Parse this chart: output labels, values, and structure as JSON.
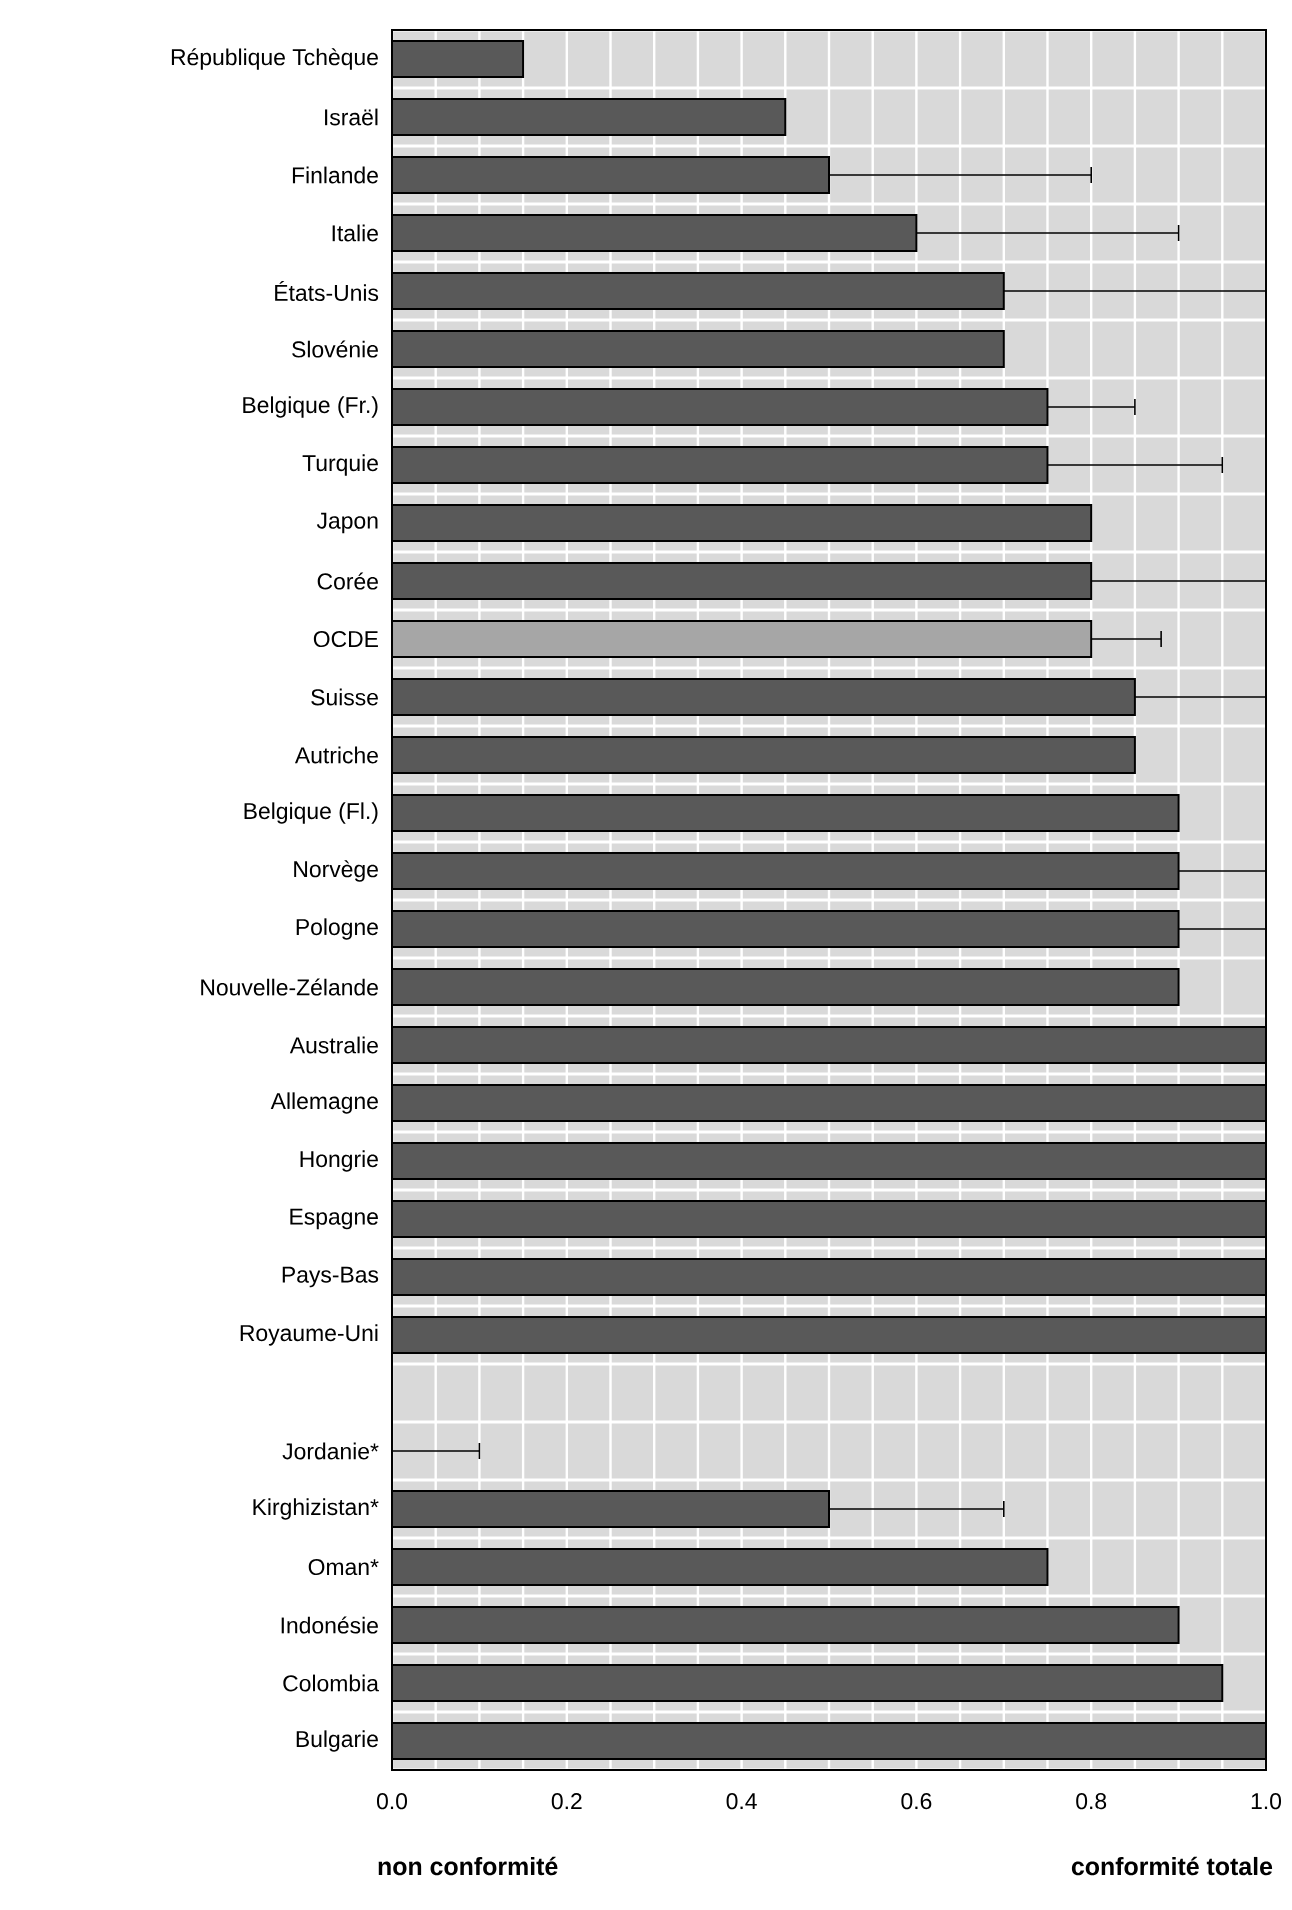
{
  "chart_data": {
    "type": "bar",
    "orientation": "horizontal",
    "categories": [
      "République Tchèque",
      "Israël",
      "Finlande",
      "Italie",
      "États-Unis",
      "Slovénie",
      "Belgique (Fr.)",
      "Turquie",
      "Japon",
      "Corée",
      "OCDE",
      "Suisse",
      "Autriche",
      "Belgique (Fl.)",
      "Norvège",
      "Pologne",
      "Nouvelle-Zélande",
      "Australie",
      "Allemagne",
      "Hongrie",
      "Espagne",
      "Pays-Bas",
      "Royaume-Uni",
      null,
      "Jordanie*",
      "Kirghizistan*",
      "Oman*",
      "Indonésie",
      "Colombia",
      "Bulgarie"
    ],
    "values": [
      0.15,
      0.45,
      0.5,
      0.6,
      0.7,
      0.7,
      0.75,
      0.75,
      0.8,
      0.8,
      0.8,
      0.85,
      0.85,
      0.9,
      0.9,
      0.9,
      0.9,
      1.0,
      1.0,
      1.0,
      1.0,
      1.0,
      1.0,
      null,
      0,
      0.5,
      0.75,
      0.9,
      0.95,
      1.0
    ],
    "errors": [
      null,
      null,
      [
        0.5,
        0.8
      ],
      [
        0.6,
        0.9
      ],
      [
        0.7,
        1.0
      ],
      null,
      [
        0.75,
        0.85
      ],
      [
        0.75,
        0.95
      ],
      null,
      [
        0.8,
        1.0
      ],
      [
        0.8,
        0.88
      ],
      [
        0.85,
        1.0
      ],
      null,
      null,
      [
        0.9,
        1.0
      ],
      [
        0.9,
        1.0
      ],
      null,
      null,
      null,
      null,
      null,
      null,
      null,
      null,
      [
        0,
        0.1
      ],
      [
        0.5,
        0.7
      ],
      null,
      null,
      null,
      null
    ],
    "colors": [
      "#595959",
      "#595959",
      "#595959",
      "#595959",
      "#595959",
      "#595959",
      "#595959",
      "#595959",
      "#595959",
      "#595959",
      "#a6a6a6",
      "#595959",
      "#595959",
      "#595959",
      "#595959",
      "#595959",
      "#595959",
      "#595959",
      "#595959",
      "#595959",
      "#595959",
      "#595959",
      "#595959",
      "#595959",
      "#595959",
      "#595959",
      "#595959",
      "#595959",
      "#595959",
      "#595959"
    ],
    "xlim": [
      0,
      1
    ],
    "xticks": [
      {
        "value": 0,
        "label": "0.0"
      },
      {
        "value": 0.05,
        "label": null
      },
      {
        "value": 0.1,
        "label": null
      },
      {
        "value": 0.15,
        "label": null
      },
      {
        "value": 0.2,
        "label": "0.2"
      },
      {
        "value": 0.25,
        "label": null
      },
      {
        "value": 0.3,
        "label": null
      },
      {
        "value": 0.35,
        "label": null
      },
      {
        "value": 0.4,
        "label": "0.4"
      },
      {
        "value": 0.45,
        "label": null
      },
      {
        "value": 0.5,
        "label": null
      },
      {
        "value": 0.55,
        "label": null
      },
      {
        "value": 0.6,
        "label": "0.6"
      },
      {
        "value": 0.65,
        "label": null
      },
      {
        "value": 0.7,
        "label": null
      },
      {
        "value": 0.75,
        "label": null
      },
      {
        "value": 0.8,
        "label": "0.8"
      },
      {
        "value": 0.85,
        "label": null
      },
      {
        "value": 0.9,
        "label": null
      },
      {
        "value": 0.95,
        "label": null
      },
      {
        "value": 1,
        "label": "1.0"
      }
    ],
    "grid": true,
    "annotations": [
      "**non conformité**",
      "**conformité totale**"
    ]
  }
}
